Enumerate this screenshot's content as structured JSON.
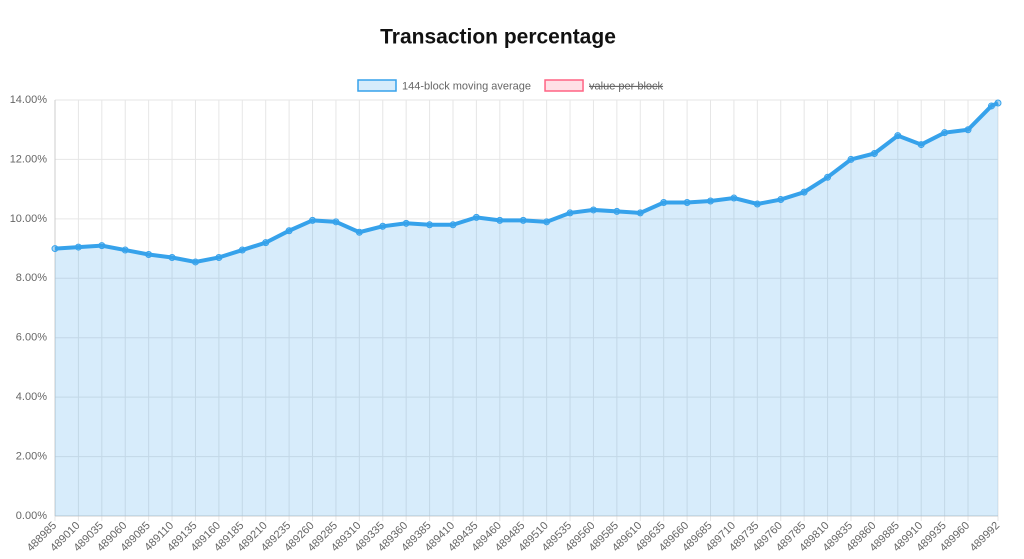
{
  "chart_data": {
    "type": "line",
    "title": "Transaction percentage",
    "legend": [
      {
        "name": "144-block moving average",
        "color": "#36a2eb",
        "hidden": false
      },
      {
        "name": "value per block",
        "color": "#ff6384",
        "hidden": true
      }
    ],
    "series": [
      {
        "name": "144-block moving average",
        "color": "#36a2eb",
        "fill": true,
        "x": [
          488985,
          489010,
          489035,
          489060,
          489085,
          489110,
          489135,
          489160,
          489185,
          489210,
          489235,
          489260,
          489285,
          489310,
          489335,
          489360,
          489385,
          489410,
          489435,
          489460,
          489485,
          489510,
          489535,
          489560,
          489585,
          489610,
          489635,
          489660,
          489685,
          489710,
          489735,
          489760,
          489785,
          489810,
          489835,
          489860,
          489885,
          489910,
          489935,
          489960,
          489985,
          489992
        ],
        "values": [
          9.0,
          9.05,
          9.1,
          8.95,
          8.8,
          8.7,
          8.55,
          8.7,
          8.95,
          9.2,
          9.6,
          9.95,
          9.9,
          9.55,
          9.75,
          9.85,
          9.8,
          9.8,
          10.05,
          9.95,
          9.95,
          9.9,
          10.2,
          10.3,
          10.25,
          10.2,
          10.55,
          10.55,
          10.6,
          10.7,
          10.5,
          10.65,
          10.9,
          11.4,
          12.0,
          12.2,
          12.8,
          12.5,
          12.9,
          13.0,
          13.8,
          13.9
        ]
      }
    ],
    "xlim": [
      488985,
      489992
    ],
    "xticks": [
      488985,
      489010,
      489035,
      489060,
      489085,
      489110,
      489135,
      489160,
      489185,
      489210,
      489235,
      489260,
      489285,
      489310,
      489335,
      489360,
      489385,
      489410,
      489435,
      489460,
      489485,
      489510,
      489535,
      489560,
      489585,
      489610,
      489635,
      489660,
      489685,
      489710,
      489735,
      489760,
      489785,
      489810,
      489835,
      489860,
      489885,
      489910,
      489935,
      489960,
      489992
    ],
    "ylim": [
      0,
      14
    ],
    "yticks": [
      {
        "value": 0,
        "label": "0.00%"
      },
      {
        "value": 2,
        "label": "2.00%"
      },
      {
        "value": 4,
        "label": "4.00%"
      },
      {
        "value": 6,
        "label": "6.00%"
      },
      {
        "value": 8,
        "label": "8.00%"
      },
      {
        "value": 10,
        "label": "10.00%"
      },
      {
        "value": 12,
        "label": "12.00%"
      },
      {
        "value": 14,
        "label": "14.00%"
      }
    ],
    "grid": true
  }
}
